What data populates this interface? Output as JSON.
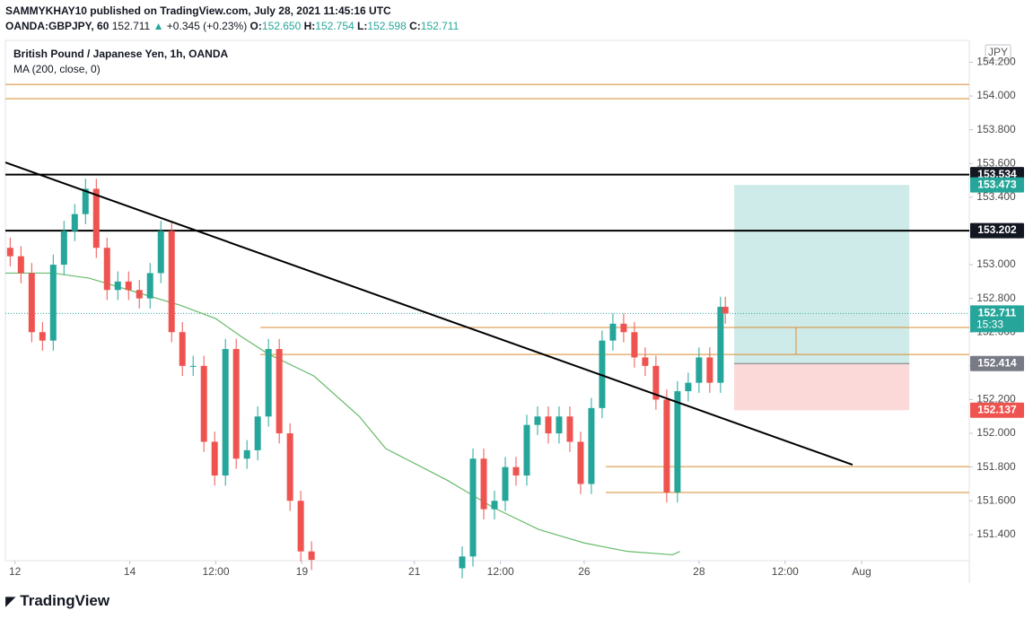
{
  "header": {
    "publisher": "SAMMYKHAY10 published on TradingView.com, July 28, 2021 11:45:16 UTC",
    "symbol": "OANDA:GBPJPY, 60",
    "last": "152.711",
    "arrow": "▲",
    "change": "+0.345 (+0.23%)",
    "o_label": "O:",
    "o": "152.650",
    "h_label": "H:",
    "h": "152.754",
    "l_label": "L:",
    "l": "152.598",
    "c_label": "C:",
    "c": "152.711"
  },
  "footer": {
    "logo": "TradingView"
  },
  "chart_data": {
    "type": "candlestick",
    "title": "British Pound / Japanese Yen, 1h, OANDA",
    "currency": "JPY",
    "up_color": "#26a69a",
    "down_color": "#ef5350",
    "xlim": [
      0,
      403
    ],
    "ylim": [
      151.245,
      154.33
    ],
    "xticks": [
      {
        "value": 4,
        "label": "12"
      },
      {
        "value": 52,
        "label": "14"
      },
      {
        "value": 88,
        "label": "12:00"
      },
      {
        "value": 124,
        "label": "19"
      },
      {
        "value": 171,
        "label": "21"
      },
      {
        "value": 207,
        "label": "12:00"
      },
      {
        "value": 242,
        "label": "26"
      },
      {
        "value": 290,
        "label": "28"
      },
      {
        "value": 326,
        "label": "12:00"
      },
      {
        "value": 358,
        "label": "Aug"
      }
    ],
    "yticks": [
      {
        "value": 151.4,
        "label": "151.400"
      },
      {
        "value": 151.6,
        "label": "151.600"
      },
      {
        "value": 151.8,
        "label": "151.800"
      },
      {
        "value": 152.0,
        "label": "152.000"
      },
      {
        "value": 152.2,
        "label": "152.200"
      },
      {
        "value": 152.4,
        "label": "152.400"
      },
      {
        "value": 152.6,
        "label": "152.600"
      },
      {
        "value": 152.8,
        "label": "152.800"
      },
      {
        "value": 153.0,
        "label": "153.000"
      },
      {
        "value": 153.2,
        "label": "153.200"
      },
      {
        "value": 153.4,
        "label": "153.400"
      },
      {
        "value": 153.6,
        "label": "153.600"
      },
      {
        "value": 153.8,
        "label": "153.800"
      },
      {
        "value": 154.0,
        "label": "154.000"
      },
      {
        "value": 154.2,
        "label": "154.200"
      }
    ],
    "x": [
      2,
      6.5,
      11,
      15.5,
      20,
      24.5,
      29,
      33.5,
      38,
      42.5,
      47,
      51.5,
      56,
      60.5,
      65,
      69.5,
      74,
      78.5,
      83,
      87.5,
      92,
      96.5,
      101,
      105.5,
      110,
      114.5,
      119,
      123.5,
      128,
      191,
      195.5,
      200,
      204.5,
      209,
      213.5,
      218,
      222.5,
      227,
      231.5,
      236,
      240.5,
      245,
      249.5,
      254,
      258.5,
      263,
      267.5,
      272,
      276.5,
      281,
      285.5,
      290,
      294.5,
      299,
      301
    ],
    "open": [
      153.1,
      153.05,
      152.95,
      152.6,
      152.55,
      153.0,
      153.2,
      153.3,
      153.45,
      153.1,
      152.85,
      152.9,
      152.85,
      152.8,
      152.95,
      153.2,
      152.6,
      152.4,
      152.4,
      151.95,
      151.75,
      152.5,
      151.85,
      151.9,
      152.1,
      152.5,
      152.0,
      151.6,
      151.3,
      151.2,
      151.27,
      151.85,
      151.55,
      151.6,
      151.8,
      151.75,
      152.05,
      152.1,
      152.0,
      152.1,
      151.95,
      151.7,
      152.15,
      152.55,
      152.65,
      152.6,
      152.45,
      152.4,
      152.2,
      151.65,
      152.25,
      152.3,
      152.45,
      152.3,
      152.75
    ],
    "high": [
      153.16,
      153.11,
      153.01,
      152.66,
      153.06,
      153.26,
      153.36,
      153.51,
      153.51,
      153.16,
      152.96,
      152.96,
      152.91,
      153.01,
      153.26,
      153.26,
      152.66,
      152.46,
      152.46,
      152.01,
      152.56,
      152.56,
      151.96,
      152.16,
      152.56,
      152.56,
      152.06,
      151.66,
      151.36,
      151.33,
      151.91,
      151.91,
      151.66,
      151.86,
      151.86,
      152.11,
      152.16,
      152.16,
      152.16,
      152.16,
      152.01,
      152.21,
      152.61,
      152.71,
      152.71,
      152.66,
      152.51,
      152.46,
      152.26,
      152.31,
      152.36,
      152.51,
      152.51,
      152.81,
      152.81
    ],
    "low": [
      152.99,
      152.89,
      152.54,
      152.49,
      152.49,
      152.94,
      153.14,
      153.24,
      153.04,
      152.79,
      152.79,
      152.79,
      152.74,
      152.74,
      152.89,
      152.54,
      152.34,
      152.34,
      151.89,
      151.69,
      151.69,
      151.79,
      151.79,
      151.84,
      152.04,
      151.94,
      151.54,
      151.24,
      151.19,
      151.14,
      151.21,
      151.49,
      151.49,
      151.54,
      151.69,
      151.69,
      151.99,
      151.94,
      151.94,
      151.89,
      151.64,
      151.64,
      152.09,
      152.49,
      152.54,
      152.39,
      152.34,
      152.14,
      151.59,
      151.59,
      152.19,
      152.24,
      152.24,
      152.24,
      152.65
    ],
    "close": [
      153.05,
      152.95,
      152.6,
      152.55,
      153.0,
      153.2,
      153.3,
      153.45,
      153.1,
      152.85,
      152.9,
      152.85,
      152.8,
      152.95,
      153.2,
      152.6,
      152.4,
      152.4,
      151.95,
      151.75,
      152.5,
      151.85,
      151.9,
      152.1,
      152.5,
      152.0,
      151.6,
      151.3,
      151.25,
      151.27,
      151.85,
      151.55,
      151.6,
      151.8,
      151.75,
      152.05,
      152.1,
      152.0,
      152.1,
      151.95,
      151.7,
      152.15,
      152.55,
      152.65,
      152.6,
      152.45,
      152.4,
      152.2,
      151.65,
      152.25,
      152.3,
      152.45,
      152.3,
      152.75,
      152.711
    ],
    "ma": {
      "name": "MA (200, close, 0)",
      "color": "#66bb6a",
      "x": [
        0,
        20,
        35,
        54,
        73,
        88,
        99,
        110,
        129,
        148,
        159,
        185,
        204,
        223,
        242,
        260,
        279,
        282
      ],
      "values": [
        152.95,
        152.95,
        152.92,
        152.84,
        152.76,
        152.68,
        152.57,
        152.47,
        152.34,
        152.1,
        151.91,
        151.72,
        151.56,
        151.43,
        151.35,
        151.3,
        151.28,
        151.3
      ]
    },
    "hlines": [
      {
        "value": 154.069,
        "color": "#d98b32",
        "width": 1,
        "x0": 0
      },
      {
        "value": 153.984,
        "color": "#d98b32",
        "width": 1,
        "x0": 0
      },
      {
        "value": 153.534,
        "color": "#000000",
        "width": 2,
        "x0": 0
      },
      {
        "value": 153.202,
        "color": "#000000",
        "width": 2,
        "x0": 0
      },
      {
        "value": 152.628,
        "color": "#d98b32",
        "width": 1,
        "x0": 106.6
      },
      {
        "value": 152.468,
        "color": "#d98b32",
        "width": 1,
        "x0": 106.6
      },
      {
        "value": 151.803,
        "color": "#d98b32",
        "width": 1,
        "x0": 251
      },
      {
        "value": 151.649,
        "color": "#d98b32",
        "width": 1,
        "x0": 251
      }
    ],
    "trendline": {
      "x": [
        0,
        354.2
      ],
      "values": [
        153.606,
        151.814
      ],
      "color": "#000000"
    },
    "position": {
      "x": [
        304.7,
        377.9
      ],
      "target": 153.473,
      "entry": 152.414,
      "stop": 152.137
    },
    "price_line": {
      "value": 152.711,
      "color": "#26a69a"
    },
    "axis_labels": [
      {
        "value": 153.534,
        "color": "#131722"
      },
      {
        "value": 153.473,
        "color": "#26a69a"
      },
      {
        "value": 153.202,
        "color": "#131722"
      },
      {
        "value": 152.711,
        "color": "#26a69a",
        "countdown": "15:33"
      },
      {
        "value": 152.414,
        "color": "#787b86"
      },
      {
        "value": 152.137,
        "color": "#ef5350"
      }
    ]
  }
}
